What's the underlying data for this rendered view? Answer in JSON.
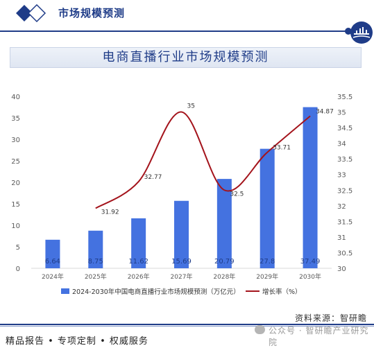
{
  "header": {
    "section_title": "市场规模预测"
  },
  "title_box": {
    "title": "电商直播行业市场规模预测"
  },
  "chart_data": {
    "type": "bar",
    "title": "电商直播行业市场规模预测",
    "categories": [
      "2024年",
      "2025年",
      "2026年",
      "2027年",
      "2028年",
      "2029年",
      "2030年"
    ],
    "series": [
      {
        "name": "2024-2030年中国电商直播行业市场规模预测（万亿元）",
        "type": "bar",
        "axis": "left",
        "color": "#4472e0",
        "values": [
          6.64,
          8.75,
          11.62,
          15.69,
          20.79,
          27.8,
          37.49
        ],
        "labels": [
          "6.64",
          "8.75",
          "11.62",
          "15.69",
          "20.79",
          "27.8",
          "37.49"
        ]
      },
      {
        "name": "增长率（%）",
        "type": "line",
        "axis": "right",
        "color": "#a4141c",
        "values": [
          null,
          31.92,
          32.77,
          35,
          32.5,
          33.71,
          34.87
        ],
        "labels": [
          "",
          "31.92",
          "32.77",
          "35",
          "32.5",
          "33.71",
          "34.87"
        ]
      }
    ],
    "left_axis": {
      "min": 0,
      "max": 40,
      "ticks": [
        "0",
        "5",
        "10",
        "15",
        "20",
        "25",
        "30",
        "35",
        "40"
      ]
    },
    "right_axis": {
      "min": 30,
      "max": 35.5,
      "ticks": [
        "30",
        "30.5",
        "31",
        "31.5",
        "32",
        "32.5",
        "33",
        "33.5",
        "34",
        "34.5",
        "35",
        "35.5"
      ]
    },
    "grid": false,
    "legend_position": "bottom"
  },
  "footer": {
    "source": "资料来源：智研瞻",
    "slogan": "精品报告 • 专项定制 • 权威服务",
    "watermark": "公众号 · 智研瞻产业研究院"
  }
}
